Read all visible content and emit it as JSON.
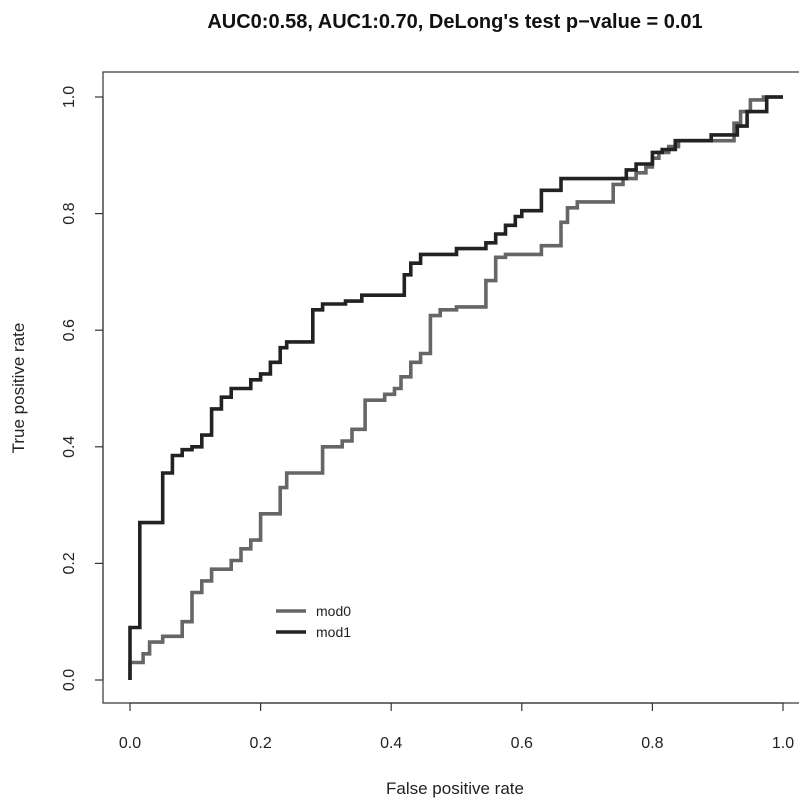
{
  "chart_data": {
    "type": "line",
    "title": "AUC0:0.58, AUC1:0.70, DeLong's test p−value = 0.01",
    "xlabel": "False positive rate",
    "ylabel": "True positive rate",
    "xlim": [
      0,
      1
    ],
    "ylim": [
      0,
      1
    ],
    "x_ticks": [
      "0.0",
      "0.2",
      "0.4",
      "0.6",
      "0.8",
      "1.0"
    ],
    "y_ticks": [
      "0.0",
      "0.2",
      "0.4",
      "0.6",
      "0.8",
      "1.0"
    ],
    "grid": false,
    "legend_position": "bottom-left",
    "series": [
      {
        "name": "mod0",
        "color": "#666666",
        "step": true,
        "points": [
          [
            0.0,
            0.0
          ],
          [
            0.0,
            0.03
          ],
          [
            0.02,
            0.03
          ],
          [
            0.02,
            0.045
          ],
          [
            0.03,
            0.045
          ],
          [
            0.03,
            0.065
          ],
          [
            0.05,
            0.065
          ],
          [
            0.05,
            0.075
          ],
          [
            0.08,
            0.075
          ],
          [
            0.08,
            0.1
          ],
          [
            0.095,
            0.1
          ],
          [
            0.095,
            0.15
          ],
          [
            0.11,
            0.15
          ],
          [
            0.11,
            0.17
          ],
          [
            0.125,
            0.17
          ],
          [
            0.125,
            0.19
          ],
          [
            0.155,
            0.19
          ],
          [
            0.155,
            0.205
          ],
          [
            0.17,
            0.205
          ],
          [
            0.17,
            0.225
          ],
          [
            0.185,
            0.225
          ],
          [
            0.185,
            0.24
          ],
          [
            0.2,
            0.24
          ],
          [
            0.2,
            0.285
          ],
          [
            0.23,
            0.285
          ],
          [
            0.23,
            0.33
          ],
          [
            0.24,
            0.33
          ],
          [
            0.24,
            0.355
          ],
          [
            0.295,
            0.355
          ],
          [
            0.295,
            0.4
          ],
          [
            0.325,
            0.4
          ],
          [
            0.325,
            0.41
          ],
          [
            0.34,
            0.41
          ],
          [
            0.34,
            0.43
          ],
          [
            0.36,
            0.43
          ],
          [
            0.36,
            0.48
          ],
          [
            0.39,
            0.48
          ],
          [
            0.39,
            0.49
          ],
          [
            0.405,
            0.49
          ],
          [
            0.405,
            0.5
          ],
          [
            0.415,
            0.5
          ],
          [
            0.415,
            0.52
          ],
          [
            0.43,
            0.52
          ],
          [
            0.43,
            0.545
          ],
          [
            0.445,
            0.545
          ],
          [
            0.445,
            0.56
          ],
          [
            0.46,
            0.56
          ],
          [
            0.46,
            0.625
          ],
          [
            0.475,
            0.625
          ],
          [
            0.475,
            0.635
          ],
          [
            0.5,
            0.635
          ],
          [
            0.5,
            0.64
          ],
          [
            0.545,
            0.64
          ],
          [
            0.545,
            0.685
          ],
          [
            0.56,
            0.685
          ],
          [
            0.56,
            0.725
          ],
          [
            0.575,
            0.725
          ],
          [
            0.575,
            0.73
          ],
          [
            0.63,
            0.73
          ],
          [
            0.63,
            0.745
          ],
          [
            0.66,
            0.745
          ],
          [
            0.66,
            0.785
          ],
          [
            0.67,
            0.785
          ],
          [
            0.67,
            0.81
          ],
          [
            0.685,
            0.81
          ],
          [
            0.685,
            0.82
          ],
          [
            0.74,
            0.82
          ],
          [
            0.74,
            0.85
          ],
          [
            0.755,
            0.85
          ],
          [
            0.755,
            0.86
          ],
          [
            0.775,
            0.86
          ],
          [
            0.775,
            0.87
          ],
          [
            0.79,
            0.87
          ],
          [
            0.79,
            0.88
          ],
          [
            0.8,
            0.88
          ],
          [
            0.8,
            0.895
          ],
          [
            0.81,
            0.895
          ],
          [
            0.81,
            0.905
          ],
          [
            0.825,
            0.905
          ],
          [
            0.825,
            0.915
          ],
          [
            0.84,
            0.915
          ],
          [
            0.84,
            0.925
          ],
          [
            0.925,
            0.925
          ],
          [
            0.925,
            0.955
          ],
          [
            0.935,
            0.955
          ],
          [
            0.935,
            0.975
          ],
          [
            0.95,
            0.975
          ],
          [
            0.95,
            0.995
          ],
          [
            0.97,
            0.995
          ],
          [
            0.97,
            1.0
          ],
          [
            1.0,
            1.0
          ]
        ]
      },
      {
        "name": "mod1",
        "color": "#222222",
        "step": true,
        "points": [
          [
            0.0,
            0.0
          ],
          [
            0.0,
            0.09
          ],
          [
            0.015,
            0.09
          ],
          [
            0.015,
            0.27
          ],
          [
            0.05,
            0.27
          ],
          [
            0.05,
            0.355
          ],
          [
            0.065,
            0.355
          ],
          [
            0.065,
            0.385
          ],
          [
            0.08,
            0.385
          ],
          [
            0.08,
            0.395
          ],
          [
            0.095,
            0.395
          ],
          [
            0.095,
            0.4
          ],
          [
            0.11,
            0.4
          ],
          [
            0.11,
            0.42
          ],
          [
            0.125,
            0.42
          ],
          [
            0.125,
            0.465
          ],
          [
            0.14,
            0.465
          ],
          [
            0.14,
            0.485
          ],
          [
            0.155,
            0.485
          ],
          [
            0.155,
            0.5
          ],
          [
            0.185,
            0.5
          ],
          [
            0.185,
            0.515
          ],
          [
            0.2,
            0.515
          ],
          [
            0.2,
            0.525
          ],
          [
            0.215,
            0.525
          ],
          [
            0.215,
            0.545
          ],
          [
            0.23,
            0.545
          ],
          [
            0.23,
            0.57
          ],
          [
            0.24,
            0.57
          ],
          [
            0.24,
            0.58
          ],
          [
            0.28,
            0.58
          ],
          [
            0.28,
            0.635
          ],
          [
            0.295,
            0.635
          ],
          [
            0.295,
            0.645
          ],
          [
            0.33,
            0.645
          ],
          [
            0.33,
            0.65
          ],
          [
            0.355,
            0.65
          ],
          [
            0.355,
            0.66
          ],
          [
            0.42,
            0.66
          ],
          [
            0.42,
            0.695
          ],
          [
            0.43,
            0.695
          ],
          [
            0.43,
            0.715
          ],
          [
            0.445,
            0.715
          ],
          [
            0.445,
            0.73
          ],
          [
            0.5,
            0.73
          ],
          [
            0.5,
            0.74
          ],
          [
            0.545,
            0.74
          ],
          [
            0.545,
            0.75
          ],
          [
            0.56,
            0.75
          ],
          [
            0.56,
            0.765
          ],
          [
            0.575,
            0.765
          ],
          [
            0.575,
            0.78
          ],
          [
            0.59,
            0.78
          ],
          [
            0.59,
            0.795
          ],
          [
            0.6,
            0.795
          ],
          [
            0.6,
            0.805
          ],
          [
            0.63,
            0.805
          ],
          [
            0.63,
            0.84
          ],
          [
            0.66,
            0.84
          ],
          [
            0.66,
            0.86
          ],
          [
            0.76,
            0.86
          ],
          [
            0.76,
            0.875
          ],
          [
            0.775,
            0.875
          ],
          [
            0.775,
            0.885
          ],
          [
            0.8,
            0.885
          ],
          [
            0.8,
            0.905
          ],
          [
            0.815,
            0.905
          ],
          [
            0.815,
            0.91
          ],
          [
            0.835,
            0.91
          ],
          [
            0.835,
            0.925
          ],
          [
            0.89,
            0.925
          ],
          [
            0.89,
            0.935
          ],
          [
            0.93,
            0.935
          ],
          [
            0.93,
            0.95
          ],
          [
            0.945,
            0.95
          ],
          [
            0.945,
            0.975
          ],
          [
            0.975,
            0.975
          ],
          [
            0.975,
            1.0
          ],
          [
            1.0,
            1.0
          ]
        ]
      }
    ]
  }
}
